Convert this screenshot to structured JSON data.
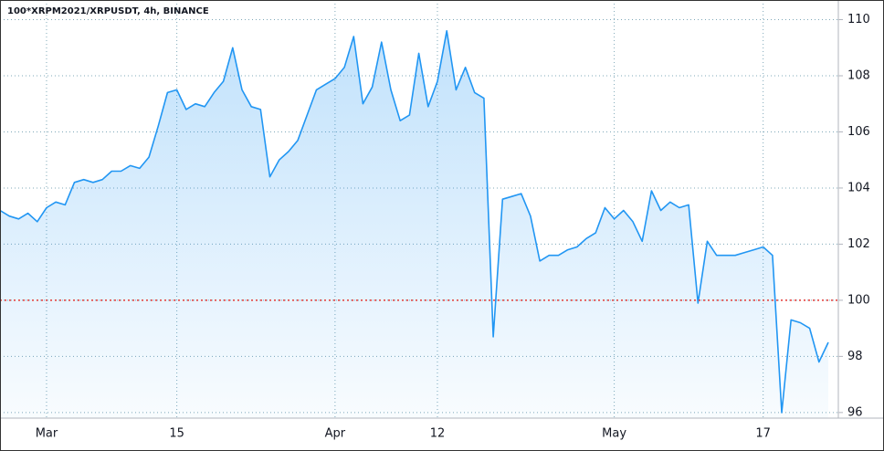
{
  "chart_data": {
    "type": "area",
    "title": "100*XRPM2021/XRPUSDT, 4h, BINANCE",
    "categories": [
      null,
      null,
      null,
      null,
      null,
      "Mar",
      null,
      null,
      null,
      null,
      null,
      null,
      null,
      null,
      null,
      null,
      null,
      null,
      null,
      "15",
      null,
      null,
      null,
      null,
      null,
      null,
      null,
      null,
      null,
      null,
      null,
      null,
      null,
      null,
      null,
      null,
      "Apr",
      null,
      null,
      null,
      null,
      null,
      null,
      null,
      null,
      null,
      null,
      "12",
      null,
      null,
      null,
      null,
      null,
      null,
      null,
      null,
      null,
      null,
      null,
      null,
      null,
      null,
      null,
      null,
      null,
      null,
      "May",
      null,
      null,
      null,
      null,
      null,
      null,
      null,
      null,
      null,
      null,
      null,
      null,
      null,
      null,
      null,
      "17",
      null,
      null,
      null,
      null,
      null,
      null,
      null
    ],
    "values": [
      103.2,
      103.0,
      102.9,
      103.1,
      102.8,
      103.3,
      103.5,
      103.4,
      104.2,
      104.3,
      104.2,
      104.3,
      104.6,
      104.6,
      104.8,
      104.7,
      105.1,
      106.2,
      107.4,
      107.5,
      106.8,
      107.0,
      106.9,
      107.4,
      107.8,
      109.0,
      107.5,
      106.9,
      106.8,
      104.4,
      105.0,
      105.3,
      105.7,
      106.6,
      107.5,
      107.7,
      107.9,
      108.3,
      109.4,
      107.0,
      107.6,
      109.2,
      107.5,
      106.4,
      106.6,
      108.8,
      106.9,
      107.8,
      109.6,
      107.5,
      108.3,
      107.4,
      107.2,
      98.7,
      103.6,
      103.7,
      103.8,
      103.0,
      101.4,
      101.6,
      101.6,
      101.8,
      101.9,
      102.2,
      102.4,
      103.3,
      102.9,
      103.2,
      102.8,
      102.1,
      103.9,
      103.2,
      103.5,
      103.3,
      103.4,
      99.9,
      102.1,
      101.6,
      101.6,
      101.6,
      101.7,
      101.8,
      101.9,
      101.6,
      96.0,
      99.3,
      99.2,
      99.0,
      97.8,
      98.5
    ],
    "color": "#2196f3",
    "ylim": [
      95.8,
      110.7
    ],
    "yticks": [
      96,
      98,
      100,
      102,
      104,
      106,
      108,
      110
    ],
    "grid": true,
    "hline": {
      "value": 100,
      "color": "#e53935"
    }
  }
}
